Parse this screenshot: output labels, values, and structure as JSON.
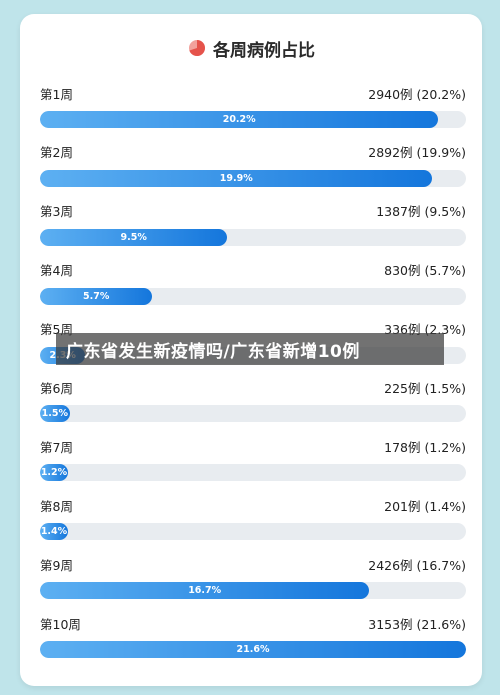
{
  "colors": {
    "bar_start": "#5db0f2",
    "bar_end": "#1476dc",
    "track": "#e8ecf0",
    "page_bg": "#bfe4ea",
    "icon_red": "#e5534b",
    "icon_salmon": "#f2a29c"
  },
  "header": {
    "title": "各周病例占比",
    "icon": "pie-chart-icon"
  },
  "overlay": {
    "text": "广东省发生新疫情吗/广东省新增10例"
  },
  "chart_data": {
    "type": "bar",
    "title": "各周病例占比",
    "categories": [
      "第1周",
      "第2周",
      "第3周",
      "第4周",
      "第5周",
      "第6周",
      "第7周",
      "第8周",
      "第9周",
      "第10周"
    ],
    "counts": [
      2940,
      2892,
      1387,
      830,
      336,
      225,
      178,
      201,
      2426,
      3153
    ],
    "values": [
      20.2,
      19.9,
      9.5,
      5.7,
      2.3,
      1.5,
      1.2,
      1.4,
      16.7,
      21.6
    ],
    "right_labels": [
      "2940例 (20.2%)",
      "2892例 (19.9%)",
      "1387例 (9.5%)",
      "830例 (5.7%)",
      "336例 (2.3%)",
      "225例 (1.5%)",
      "178例 (1.2%)",
      "201例 (1.4%)",
      "2426例 (16.7%)",
      "3153例 (21.6%)"
    ],
    "bar_labels": [
      "20.2%",
      "19.9%",
      "9.5%",
      "5.7%",
      "2.3%",
      "1.5%",
      "1.2%",
      "1.4%",
      "16.7%",
      "21.6%"
    ],
    "xlim": [
      0,
      21.6
    ],
    "orientation": "horizontal"
  }
}
